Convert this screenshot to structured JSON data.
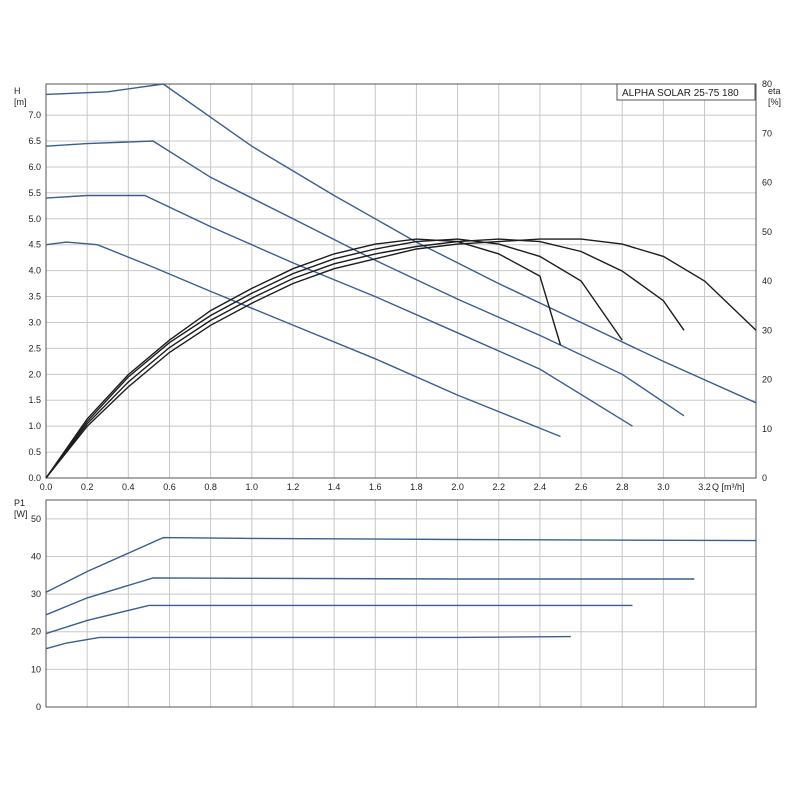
{
  "chart_data": [
    {
      "type": "line",
      "title": "ALPHA SOLAR 25-75  180",
      "xlabel": "Q [m³/h]",
      "ylabel": "H\n[m]",
      "y2label": "eta\n[%]",
      "xlim": [
        0,
        3.45
      ],
      "ylim": [
        0,
        7.6
      ],
      "y2lim": [
        0,
        80
      ],
      "x_ticks": [
        "0.0",
        "0.2",
        "0.4",
        "0.6",
        "0.8",
        "1.0",
        "1.2",
        "1.4",
        "1.6",
        "1.8",
        "2.0",
        "2.2",
        "2.4",
        "2.6",
        "2.8",
        "3.0",
        "3.2"
      ],
      "y_ticks": [
        "0.0",
        "0.5",
        "1.0",
        "1.5",
        "2.0",
        "2.5",
        "3.0",
        "3.5",
        "4.0",
        "4.5",
        "5.0",
        "5.5",
        "6.0",
        "6.5",
        "7.0"
      ],
      "y2_ticks": [
        "0",
        "10",
        "20",
        "30",
        "40",
        "50",
        "60",
        "70",
        "80"
      ],
      "grid": true,
      "series": [
        {
          "axis": "y",
          "color": "#3a5f8f",
          "x": [
            0,
            0.1,
            0.25,
            0.5,
            0.8,
            1.2,
            1.6,
            2.0,
            2.5
          ],
          "y": [
            4.5,
            4.55,
            4.5,
            4.1,
            3.6,
            2.95,
            2.3,
            1.6,
            0.8
          ]
        },
        {
          "axis": "y",
          "color": "#3a5f8f",
          "x": [
            0,
            0.2,
            0.48,
            0.8,
            1.2,
            1.6,
            2.0,
            2.4,
            2.85
          ],
          "y": [
            5.4,
            5.45,
            5.45,
            4.85,
            4.15,
            3.5,
            2.8,
            2.1,
            1.0
          ]
        },
        {
          "axis": "y",
          "color": "#3a5f8f",
          "x": [
            0,
            0.2,
            0.52,
            0.8,
            1.2,
            1.6,
            2.0,
            2.4,
            2.8,
            3.1
          ],
          "y": [
            6.4,
            6.45,
            6.5,
            5.8,
            5.0,
            4.2,
            3.45,
            2.75,
            2.0,
            1.2
          ]
        },
        {
          "axis": "y",
          "color": "#3a5f8f",
          "x": [
            0,
            0.3,
            0.57,
            1.0,
            1.4,
            1.8,
            2.2,
            2.6,
            3.0,
            3.45
          ],
          "y": [
            7.4,
            7.45,
            7.6,
            6.4,
            5.45,
            4.55,
            3.75,
            3.0,
            2.25,
            1.45
          ]
        },
        {
          "axis": "y2",
          "color": "#1c1c1c",
          "x": [
            0,
            0.2,
            0.4,
            0.6,
            0.8,
            1.0,
            1.2,
            1.4,
            1.6,
            1.8,
            2.0,
            2.2,
            2.4,
            2.5
          ],
          "y": [
            0,
            12,
            21,
            28,
            34,
            38.5,
            42.5,
            45.5,
            47.5,
            48.5,
            48,
            45.5,
            41,
            27
          ]
        },
        {
          "axis": "y2",
          "color": "#1c1c1c",
          "x": [
            0,
            0.2,
            0.4,
            0.6,
            0.8,
            1.0,
            1.2,
            1.4,
            1.6,
            1.8,
            2.0,
            2.2,
            2.4,
            2.6,
            2.8
          ],
          "y": [
            0,
            11.5,
            20.5,
            27.5,
            33,
            37.5,
            41.5,
            44.5,
            46.5,
            48,
            48.5,
            47.5,
            45,
            40,
            28
          ]
        },
        {
          "axis": "y2",
          "color": "#1c1c1c",
          "x": [
            0,
            0.2,
            0.4,
            0.6,
            0.8,
            1.0,
            1.2,
            1.4,
            1.6,
            1.8,
            2.0,
            2.2,
            2.4,
            2.6,
            2.8,
            3.0,
            3.1
          ],
          "y": [
            0,
            11,
            19.5,
            26.5,
            32,
            36.5,
            40.5,
            43.5,
            45.5,
            47,
            48,
            48.5,
            48,
            46,
            42,
            36,
            30
          ]
        },
        {
          "axis": "y2",
          "color": "#1c1c1c",
          "x": [
            0,
            0.2,
            0.4,
            0.6,
            0.8,
            1.0,
            1.2,
            1.4,
            1.6,
            1.8,
            2.0,
            2.2,
            2.4,
            2.6,
            2.8,
            3.0,
            3.2,
            3.45
          ],
          "y": [
            0,
            10.5,
            18.5,
            25.5,
            31,
            35.5,
            39.5,
            42.5,
            44.5,
            46.5,
            47.5,
            48,
            48.5,
            48.5,
            47.5,
            45,
            40,
            30
          ]
        }
      ],
      "legend": "top-right"
    },
    {
      "type": "line",
      "title": "",
      "xlabel": "",
      "ylabel": "P1\n[W]",
      "xlim": [
        0,
        3.45
      ],
      "ylim": [
        0,
        55
      ],
      "y_ticks": [
        "0",
        "10",
        "20",
        "30",
        "40",
        "50"
      ],
      "grid": true,
      "series": [
        {
          "color": "#3a5f8f",
          "x": [
            0,
            0.1,
            0.26,
            1.0,
            2.0,
            2.55
          ],
          "y": [
            15.5,
            17,
            18.5,
            18.5,
            18.5,
            18.7
          ]
        },
        {
          "color": "#3a5f8f",
          "x": [
            0,
            0.2,
            0.5,
            1.0,
            2.0,
            2.85
          ],
          "y": [
            19.5,
            23,
            27,
            27,
            27,
            27
          ]
        },
        {
          "color": "#3a5f8f",
          "x": [
            0,
            0.2,
            0.52,
            1.0,
            2.0,
            3.15
          ],
          "y": [
            24.5,
            29,
            34.3,
            34.2,
            34,
            34
          ]
        },
        {
          "color": "#3a5f8f",
          "x": [
            0,
            0.2,
            0.57,
            1.0,
            2.0,
            3.45
          ],
          "y": [
            30.5,
            36,
            45,
            44.8,
            44.5,
            44.2
          ]
        }
      ]
    }
  ]
}
